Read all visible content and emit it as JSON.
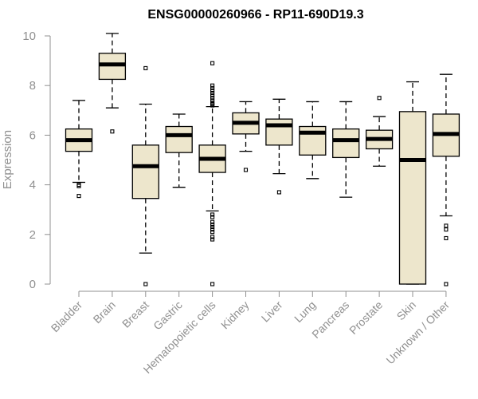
{
  "chart_data": {
    "type": "boxplot",
    "title": "ENSG00000260966 - RP11-690D19.3",
    "xlabel": "",
    "ylabel": "Expression",
    "ylim": [
      0,
      10
    ],
    "yticks": [
      0,
      2,
      4,
      6,
      8,
      10
    ],
    "box_fill": "#ede6cc",
    "grid": false,
    "categories": [
      "Bladder",
      "Brain",
      "Breast",
      "Gastric",
      "Hematopoietic cells",
      "Kidney",
      "Liver",
      "Lung",
      "Pancreas",
      "Prostate",
      "Skin",
      "Unknown / Other"
    ],
    "boxes": [
      {
        "name": "Bladder",
        "whisker_low": 4.1,
        "q1": 5.35,
        "median": 5.8,
        "q3": 6.25,
        "whisker_high": 7.4,
        "outliers": [
          3.95,
          4.0,
          3.55
        ]
      },
      {
        "name": "Brain",
        "whisker_low": 7.1,
        "q1": 8.25,
        "median": 8.85,
        "q3": 9.3,
        "whisker_high": 10.1,
        "outliers": [
          6.15
        ]
      },
      {
        "name": "Breast",
        "whisker_low": 1.25,
        "q1": 3.45,
        "median": 4.75,
        "q3": 5.6,
        "whisker_high": 7.25,
        "outliers": [
          8.7,
          0.0
        ]
      },
      {
        "name": "Gastric",
        "whisker_low": 3.9,
        "q1": 5.3,
        "median": 6.0,
        "q3": 6.35,
        "whisker_high": 6.85,
        "outliers": []
      },
      {
        "name": "Hematopoietic cells",
        "whisker_low": 2.95,
        "q1": 4.5,
        "median": 5.05,
        "q3": 5.6,
        "whisker_high": 7.15,
        "outliers": [
          8.9,
          8.0,
          7.9,
          7.8,
          7.7,
          7.6,
          7.5,
          7.4,
          7.3,
          7.25,
          7.2,
          2.8,
          2.7,
          2.5,
          2.4,
          2.3,
          2.2,
          2.1,
          1.9,
          1.8,
          0.0
        ]
      },
      {
        "name": "Kidney",
        "whisker_low": 5.35,
        "q1": 6.05,
        "median": 6.5,
        "q3": 6.9,
        "whisker_high": 7.35,
        "outliers": [
          4.6
        ]
      },
      {
        "name": "Liver",
        "whisker_low": 4.45,
        "q1": 5.6,
        "median": 6.4,
        "q3": 6.65,
        "whisker_high": 7.45,
        "outliers": [
          3.7
        ]
      },
      {
        "name": "Lung",
        "whisker_low": 4.25,
        "q1": 5.2,
        "median": 6.1,
        "q3": 6.35,
        "whisker_high": 7.35,
        "outliers": []
      },
      {
        "name": "Pancreas",
        "whisker_low": 3.5,
        "q1": 5.1,
        "median": 5.8,
        "q3": 6.25,
        "whisker_high": 7.35,
        "outliers": []
      },
      {
        "name": "Prostate",
        "whisker_low": 4.75,
        "q1": 5.45,
        "median": 5.85,
        "q3": 6.2,
        "whisker_high": 6.75,
        "outliers": [
          7.5
        ]
      },
      {
        "name": "Skin",
        "whisker_low": 0.0,
        "q1": 0.0,
        "median": 5.0,
        "q3": 6.95,
        "whisker_high": 8.15,
        "outliers": []
      },
      {
        "name": "Unknown / Other",
        "whisker_low": 2.75,
        "q1": 5.15,
        "median": 6.05,
        "q3": 6.85,
        "whisker_high": 8.45,
        "outliers": [
          2.35,
          2.2,
          1.85,
          0.0
        ]
      }
    ]
  }
}
